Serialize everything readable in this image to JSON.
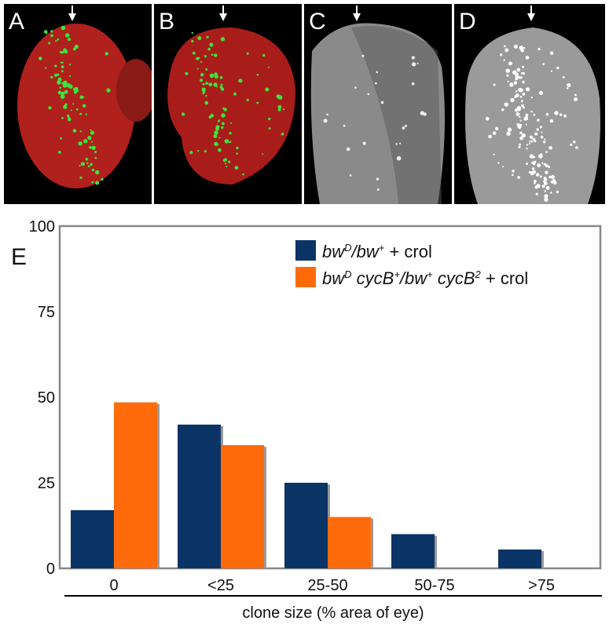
{
  "panels": [
    {
      "letter": "A",
      "colors": {
        "tissue": "#b0201c",
        "spots": "#39e63a"
      }
    },
    {
      "letter": "B",
      "colors": {
        "tissue": "#a81d1a",
        "spots": "#39e63a"
      }
    },
    {
      "letter": "C",
      "colors": {
        "tissue": "#8a8a8a",
        "spots": "#eeeeee"
      }
    },
    {
      "letter": "D",
      "colors": {
        "tissue": "#9a9a9a",
        "spots": "#ffffff"
      }
    }
  ],
  "chart_data": {
    "type": "bar",
    "panel_label": "E",
    "categories": [
      "0",
      "<25",
      "25-50",
      "50-75",
      ">75"
    ],
    "series": [
      {
        "name_base": "bw",
        "name_sup": "D",
        "name_rest": "/bw",
        "name_sup2": "+",
        "name_tail": " + crol",
        "color": "#0b3466",
        "values": [
          17,
          42,
          25,
          10,
          5.5
        ]
      },
      {
        "name_base": "bw",
        "name_sup": "D",
        "name_rest": " cycB",
        "name_sup2": "+",
        "name_rest2": "/bw",
        "name_sup3": "+",
        "name_rest3": " cycB",
        "name_sup4": "2",
        "name_tail": " + crol",
        "color": "#ff6a0a",
        "values": [
          48.5,
          36,
          15,
          0,
          0
        ]
      }
    ],
    "y_ticks": [
      "0",
      "25",
      "50",
      "75",
      "100"
    ],
    "ylim": [
      0,
      100
    ],
    "xlabel": "clone size (% area of eye)",
    "grid": false,
    "legend": "top-right"
  }
}
